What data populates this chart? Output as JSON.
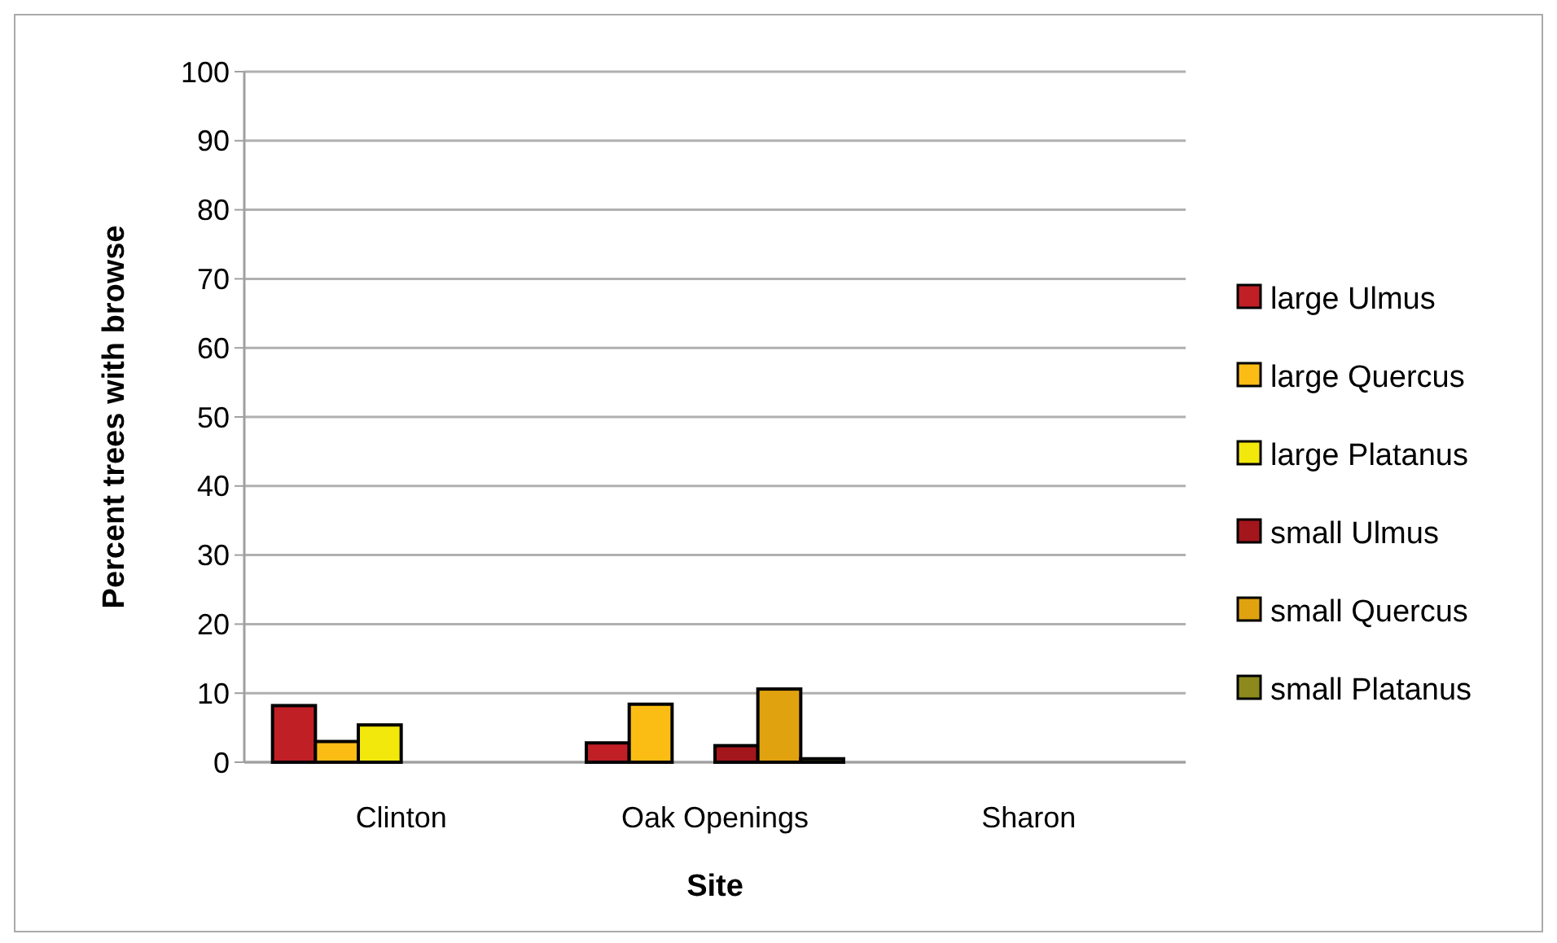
{
  "chart_data": {
    "type": "bar",
    "xlabel": "Site",
    "ylabel": "Percent trees with browse",
    "categories": [
      "Clinton",
      "Oak Openings",
      "Sharon"
    ],
    "series": [
      {
        "name": "large Ulmus",
        "color": "#c01f26",
        "values": [
          8.2,
          2.8,
          0
        ]
      },
      {
        "name": "large Quercus",
        "color": "#fbbd14",
        "values": [
          3,
          8.4,
          0
        ]
      },
      {
        "name": "large Platanus",
        "color": "#f3e80c",
        "values": [
          5.4,
          0,
          0
        ]
      },
      {
        "name": "small Ulmus",
        "color": "#a3161c",
        "values": [
          0,
          2.4,
          0
        ]
      },
      {
        "name": "small Quercus",
        "color": "#e0a20f",
        "values": [
          0,
          10.6,
          0
        ]
      },
      {
        "name": "small Platanus",
        "color": "#8c8a1c",
        "values": [
          0,
          0.5,
          0
        ]
      }
    ],
    "ylim": [
      0,
      100
    ],
    "yticks": [
      0,
      10,
      20,
      30,
      40,
      50,
      60,
      70,
      80,
      90,
      100
    ],
    "grid": "y",
    "legend": "right"
  }
}
